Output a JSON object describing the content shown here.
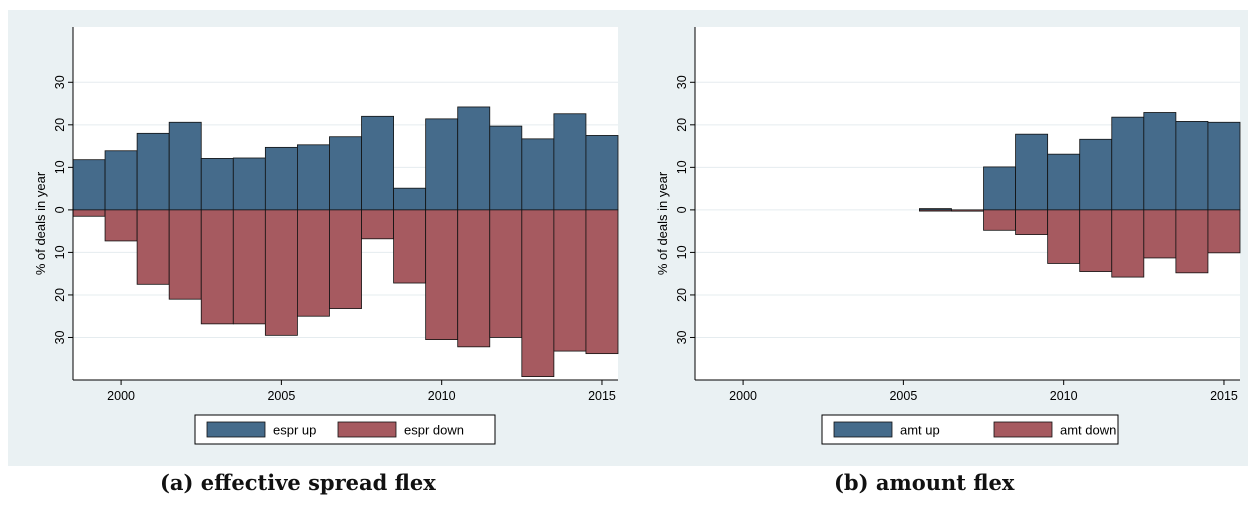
{
  "colors": {
    "up": "#456b8b",
    "down": "#a65a60",
    "background": "#eaf1f3",
    "plot": "#ffffff",
    "grid": "#e5ecef"
  },
  "captions": [
    "(a) effective spread flex",
    "(b) amount flex"
  ],
  "chart_data": [
    {
      "type": "bar",
      "subtitle": "(a) effective spread flex",
      "ylabel": "% of deals in year",
      "xlim": [
        1998.5,
        2015.5
      ],
      "ylim": [
        -40,
        43
      ],
      "x_ticks": [
        2000,
        2005,
        2010,
        2015
      ],
      "y_ticks": [
        -30,
        -20,
        -10,
        0,
        10,
        20,
        30
      ],
      "y_tick_labels": [
        "30",
        "20",
        "10",
        "0",
        "10",
        "20",
        "30"
      ],
      "grid": true,
      "legend_position": "bottom-center",
      "years": [
        1999,
        2000,
        2001,
        2002,
        2003,
        2004,
        2005,
        2006,
        2007,
        2008,
        2009,
        2010,
        2011,
        2012,
        2013,
        2014,
        2015
      ],
      "series": [
        {
          "name": "espr up",
          "color_key": "up",
          "values": [
            11.8,
            13.9,
            18.0,
            20.6,
            12.1,
            12.2,
            14.7,
            15.3,
            17.2,
            22.0,
            5.1,
            21.4,
            24.2,
            19.7,
            16.7,
            22.6,
            17.5
          ]
        },
        {
          "name": "espr down",
          "color_key": "down",
          "values": [
            -1.5,
            -7.3,
            -17.5,
            -21.0,
            -26.8,
            -26.8,
            -29.5,
            -25.0,
            -23.2,
            -6.8,
            -17.2,
            -30.5,
            -32.2,
            -30.0,
            -39.2,
            -33.2,
            -33.8
          ]
        }
      ]
    },
    {
      "type": "bar",
      "subtitle": "(b) amount flex",
      "ylabel": "% of deals in year",
      "xlim": [
        1998.5,
        2015.5
      ],
      "ylim": [
        -40,
        43
      ],
      "x_ticks": [
        2000,
        2005,
        2010,
        2015
      ],
      "y_ticks": [
        -30,
        -20,
        -10,
        0,
        10,
        20,
        30
      ],
      "y_tick_labels": [
        "30",
        "20",
        "10",
        "0",
        "10",
        "20",
        "30"
      ],
      "grid": true,
      "legend_position": "bottom-center",
      "years": [
        2006,
        2007,
        2008,
        2009,
        2010,
        2011,
        2012,
        2013,
        2014,
        2015
      ],
      "series": [
        {
          "name": "amt up",
          "color_key": "up",
          "values": [
            0.3,
            0.0,
            10.1,
            17.8,
            13.1,
            16.6,
            21.8,
            22.9,
            20.8,
            20.6
          ]
        },
        {
          "name": "amt down",
          "color_key": "down",
          "values": [
            0.0,
            -0.3,
            -4.8,
            -5.8,
            -12.6,
            -14.5,
            -15.8,
            -11.3,
            -14.8,
            -10.1
          ]
        }
      ]
    }
  ]
}
